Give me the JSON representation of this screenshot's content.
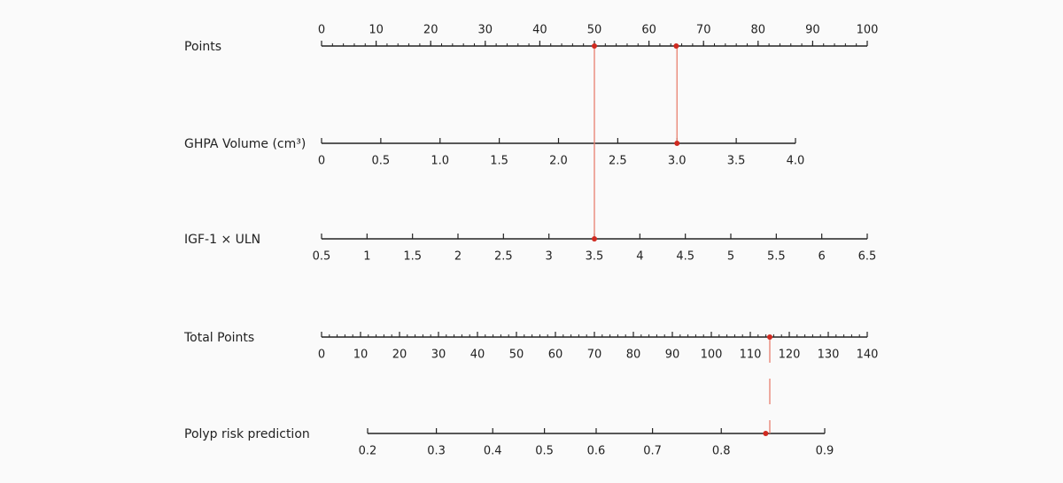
{
  "chart_data": {
    "type": "nomogram",
    "marker_color": "#d02a20",
    "connector_color": "#e8806f",
    "axes": [
      {
        "label": "Points",
        "lim": [
          0,
          100
        ],
        "ticks": [
          0,
          10,
          20,
          30,
          40,
          50,
          60,
          70,
          80,
          90,
          100
        ],
        "minor_tick_step": 2,
        "markers": [
          50,
          65
        ]
      },
      {
        "label": "GHPA Volume (cm³)",
        "lim": [
          0,
          4
        ],
        "ticks": [
          0,
          0.5,
          {
            "value": 1,
            "label": "1.0"
          },
          1.5,
          {
            "value": 2,
            "label": "2.0"
          },
          2.5,
          {
            "value": 3,
            "label": "3.0"
          },
          3.5,
          {
            "value": 4,
            "label": "4.0"
          }
        ],
        "markers": [
          3
        ]
      },
      {
        "label": "IGF-1 × ULN",
        "lim": [
          0.5,
          6.5
        ],
        "ticks": [
          0.5,
          1,
          1.5,
          2,
          2.5,
          3,
          3.5,
          4,
          4.5,
          5,
          5.5,
          6,
          6.5
        ],
        "markers": [
          3.5
        ]
      },
      {
        "label": "Total Points",
        "lim": [
          0,
          140
        ],
        "ticks": [
          0,
          10,
          20,
          30,
          40,
          50,
          60,
          70,
          80,
          90,
          100,
          110,
          120,
          130,
          140
        ],
        "minor_tick_step": 2,
        "markers": [
          115
        ]
      },
      {
        "label": "Polyp risk prediction",
        "lim": [
          0.2,
          0.9
        ],
        "scale": "logit",
        "ticks": [
          0.2,
          0.3,
          0.4,
          0.5,
          0.6,
          0.7,
          0.8,
          0.9
        ],
        "markers": [
          0.85
        ]
      }
    ]
  }
}
